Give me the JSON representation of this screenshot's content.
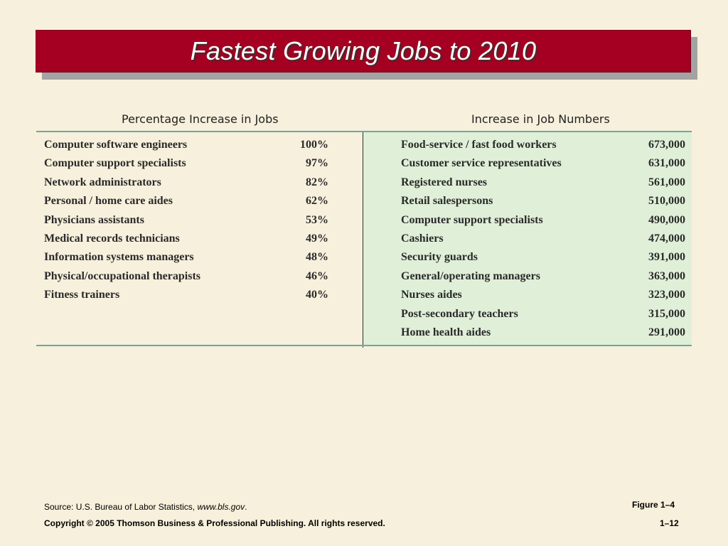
{
  "title": "Fastest Growing Jobs to 2010",
  "table": {
    "left_header": "Percentage Increase in Jobs",
    "right_header": "Increase in Job Numbers",
    "left_rows": [
      {
        "job": "Computer software engineers",
        "value": "100%"
      },
      {
        "job": "Computer support specialists",
        "value": "97%"
      },
      {
        "job": "Network administrators",
        "value": "82%"
      },
      {
        "job": "Personal / home care aides",
        "value": "62%"
      },
      {
        "job": "Physicians assistants",
        "value": "53%"
      },
      {
        "job": "Medical records technicians",
        "value": "49%"
      },
      {
        "job": "Information systems managers",
        "value": "48%"
      },
      {
        "job": "Physical/occupational therapists",
        "value": "46%"
      },
      {
        "job": "Fitness trainers",
        "value": "40%"
      }
    ],
    "right_rows": [
      {
        "job": "Food-service / fast food workers",
        "value": "673,000"
      },
      {
        "job": "Customer service representatives",
        "value": "631,000"
      },
      {
        "job": "Registered nurses",
        "value": "561,000"
      },
      {
        "job": "Retail salespersons",
        "value": "510,000"
      },
      {
        "job": "Computer support specialists",
        "value": "490,000"
      },
      {
        "job": "Cashiers",
        "value": "474,000"
      },
      {
        "job": "Security guards",
        "value": "391,000"
      },
      {
        "job": "General/operating managers",
        "value": "363,000"
      },
      {
        "job": "Nurses aides",
        "value": "323,000"
      },
      {
        "job": "Post-secondary teachers",
        "value": "315,000"
      },
      {
        "job": "Home health aides",
        "value": "291,000"
      }
    ]
  },
  "footer": {
    "source_prefix": "Source: U.S. Bureau of Labor Statistics, ",
    "source_url": "www.bls.gov",
    "source_suffix": ".",
    "figure": "Figure 1–4",
    "copyright": "Copyright © 2005 Thomson Business & Professional Publishing. All rights reserved.",
    "page": "1–12"
  },
  "colors": {
    "background": "#f7f0dc",
    "title_bar": "#a50021",
    "right_panel": "#e0efd8",
    "rule": "#6aa9a0"
  }
}
